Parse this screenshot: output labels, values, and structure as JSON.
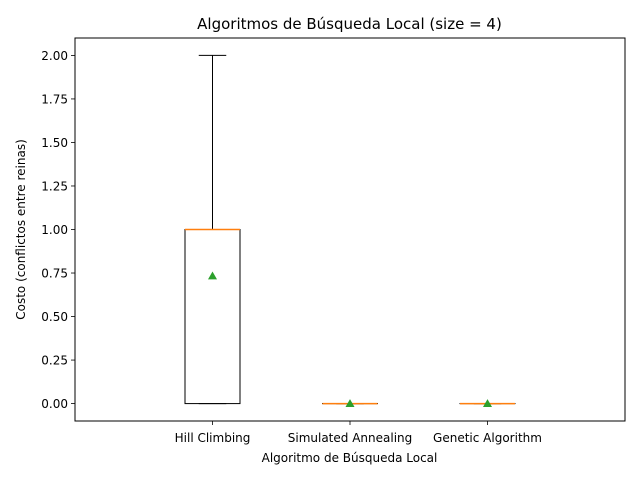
{
  "chart_data": {
    "type": "box",
    "title": "Algoritmos de Búsqueda Local (size = 4)",
    "xlabel": "Algoritmo de Búsqueda Local",
    "ylabel": "Costo (conflictos entre reinas)",
    "ylim": [
      -0.1,
      2.1
    ],
    "yticks": [
      "0.00",
      "0.25",
      "0.50",
      "0.75",
      "1.00",
      "1.25",
      "1.50",
      "1.75",
      "2.00"
    ],
    "grid": false,
    "categories": [
      "Hill Climbing",
      "Simulated Annealing",
      "Genetic Algorithm"
    ],
    "boxes": [
      {
        "whisker_low": 0,
        "q1": 0,
        "median": 1,
        "q3": 1,
        "whisker_high": 2,
        "mean": 0.733
      },
      {
        "whisker_low": 0,
        "q1": 0,
        "median": 0,
        "q3": 0,
        "whisker_high": 0,
        "mean": 0
      },
      {
        "whisker_low": 0,
        "q1": 0,
        "median": 0,
        "q3": 0,
        "whisker_high": 0,
        "mean": 0
      }
    ],
    "colors": {
      "box": "#000000",
      "median": "#ff7f0e",
      "mean_marker": "#2ca02c"
    }
  }
}
